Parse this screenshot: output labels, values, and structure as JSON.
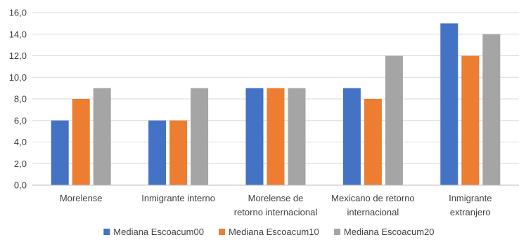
{
  "chart_data": {
    "type": "bar",
    "title": "",
    "xlabel": "",
    "ylabel": "",
    "ylim": [
      0,
      16
    ],
    "y_ticks": [
      "0,0",
      "2,0",
      "4,0",
      "6,0",
      "8,0",
      "10,0",
      "12,0",
      "14,0",
      "16,0"
    ],
    "grid": true,
    "legend_position": "bottom",
    "categories": [
      [
        "Morelense"
      ],
      [
        "Inmigrante interno"
      ],
      [
        "Morelense de",
        "retorno internacional"
      ],
      [
        "Mexicano de retorno",
        "internacional"
      ],
      [
        "Inmigrante",
        "extranjero"
      ]
    ],
    "series": [
      {
        "name": "Mediana Escoacum00",
        "color": "#4472c4",
        "values": [
          6,
          6,
          9,
          9,
          15
        ]
      },
      {
        "name": "Mediana Escoacum10",
        "color": "#ed7d31",
        "values": [
          8,
          6,
          9,
          8,
          12
        ]
      },
      {
        "name": "Mediana Escoacum20",
        "color": "#a5a5a5",
        "values": [
          9,
          9,
          9,
          12,
          14
        ]
      }
    ]
  }
}
